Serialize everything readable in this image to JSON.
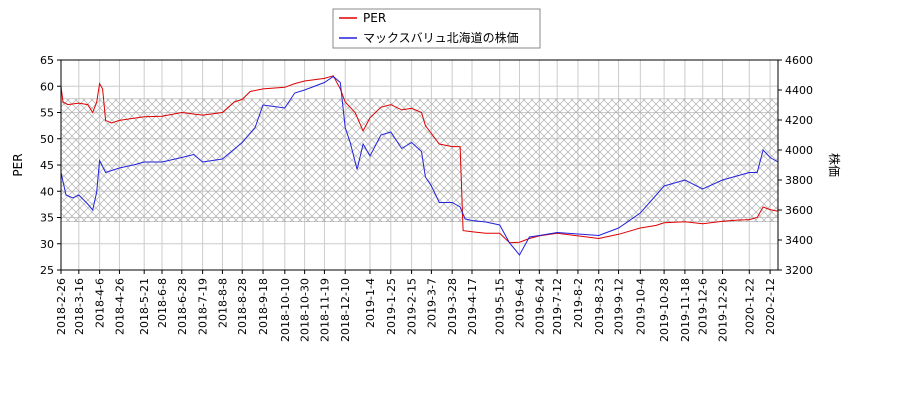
{
  "chart_data": {
    "type": "line",
    "legend": {
      "placement": "top-center",
      "entries": [
        "PER",
        "マックスバリュ北海道の株価"
      ]
    },
    "left_axis": {
      "label": "PER",
      "ylim": [
        25,
        65
      ],
      "ticks": [
        25,
        30,
        35,
        40,
        45,
        50,
        55,
        60,
        65
      ]
    },
    "right_axis": {
      "label": "株価",
      "ylim": [
        3200,
        4600
      ],
      "ticks": [
        3200,
        3400,
        3600,
        3800,
        4000,
        4200,
        4400,
        4600
      ]
    },
    "x_ticks": [
      "2018-2-26",
      "2018-3-16",
      "2018-4-6",
      "2018-4-26",
      "2018-5-21",
      "2018-6-8",
      "2018-6-28",
      "2018-7-19",
      "2018-8-8",
      "2018-8-28",
      "2018-9-18",
      "2018-10-10",
      "2018-10-30",
      "2018-11-19",
      "2018-12-10",
      "2019-1-4",
      "2019-1-25",
      "2019-2-15",
      "2019-3-7",
      "2019-3-28",
      "2019-4-17",
      "2019-5-15",
      "2019-6-4",
      "2019-6-24",
      "2019-7-12",
      "2019-8-2",
      "2019-8-23",
      "2019-9-12",
      "2019-10-4",
      "2019-10-28",
      "2019-11-18",
      "2019-12-6",
      "2019-12-26",
      "2020-1-22",
      "2020-2-12"
    ],
    "grid": true,
    "band": {
      "axis": "left",
      "from": 34.2,
      "to": 57.6
    },
    "colors": {
      "PER": "#dd0000",
      "price": "#2222dd",
      "grid": "#cccccc",
      "band_hatch": "#b0b0b0"
    },
    "series": [
      {
        "name": "PER",
        "axis": "left",
        "color": "#dd0000",
        "points": [
          [
            "2018-2-26",
            60
          ],
          [
            "2018-2-28",
            57
          ],
          [
            "2018-3-5",
            56.5
          ],
          [
            "2018-3-16",
            56.8
          ],
          [
            "2018-3-25",
            56.5
          ],
          [
            "2018-3-30",
            55
          ],
          [
            "2018-4-3",
            57
          ],
          [
            "2018-4-6",
            60.5
          ],
          [
            "2018-4-9",
            59.5
          ],
          [
            "2018-4-12",
            53.5
          ],
          [
            "2018-4-18",
            53
          ],
          [
            "2018-4-26",
            53.5
          ],
          [
            "2018-5-21",
            54.2
          ],
          [
            "2018-6-8",
            54.3
          ],
          [
            "2018-6-28",
            55
          ],
          [
            "2018-7-19",
            54.5
          ],
          [
            "2018-8-8",
            55
          ],
          [
            "2018-8-20",
            57
          ],
          [
            "2018-8-28",
            57.5
          ],
          [
            "2018-9-5",
            59
          ],
          [
            "2018-9-18",
            59.5
          ],
          [
            "2018-10-10",
            59.8
          ],
          [
            "2018-10-20",
            60.5
          ],
          [
            "2018-10-30",
            61
          ],
          [
            "2018-11-19",
            61.5
          ],
          [
            "2018-11-28",
            62
          ],
          [
            "2018-12-5",
            59.5
          ],
          [
            "2018-12-10",
            57
          ],
          [
            "2018-12-20",
            55
          ],
          [
            "2018-12-28",
            51.5
          ],
          [
            "2019-1-4",
            54
          ],
          [
            "2019-1-15",
            56
          ],
          [
            "2019-1-25",
            56.5
          ],
          [
            "2019-2-5",
            55.5
          ],
          [
            "2019-2-15",
            55.8
          ],
          [
            "2019-2-25",
            55
          ],
          [
            "2019-3-1",
            52.5
          ],
          [
            "2019-3-7",
            51
          ],
          [
            "2019-3-15",
            49
          ],
          [
            "2019-3-28",
            48.5
          ],
          [
            "2019-4-5",
            48.5
          ],
          [
            "2019-4-8",
            32.5
          ],
          [
            "2019-4-17",
            32.3
          ],
          [
            "2019-5-1",
            32
          ],
          [
            "2019-5-15",
            32
          ],
          [
            "2019-5-25",
            30.2
          ],
          [
            "2019-6-4",
            30.3
          ],
          [
            "2019-6-14",
            31
          ],
          [
            "2019-6-24",
            31.5
          ],
          [
            "2019-7-12",
            32
          ],
          [
            "2019-8-2",
            31.5
          ],
          [
            "2019-8-23",
            31
          ],
          [
            "2019-9-12",
            31.8
          ],
          [
            "2019-10-4",
            33
          ],
          [
            "2019-10-20",
            33.5
          ],
          [
            "2019-10-28",
            34
          ],
          [
            "2019-11-18",
            34.2
          ],
          [
            "2019-12-6",
            33.8
          ],
          [
            "2019-12-26",
            34.3
          ],
          [
            "2020-1-10",
            34.5
          ],
          [
            "2020-1-22",
            34.6
          ],
          [
            "2020-1-30",
            35
          ],
          [
            "2020-2-5",
            37
          ],
          [
            "2020-2-12",
            36.5
          ],
          [
            "2020-2-20",
            36.2
          ]
        ]
      },
      {
        "name": "マックスバリュ北海道の株価",
        "axis": "right",
        "color": "#2222dd",
        "points": [
          [
            "2018-2-26",
            3850
          ],
          [
            "2018-3-3",
            3700
          ],
          [
            "2018-3-10",
            3680
          ],
          [
            "2018-3-16",
            3700
          ],
          [
            "2018-3-25",
            3640
          ],
          [
            "2018-3-30",
            3600
          ],
          [
            "2018-4-3",
            3720
          ],
          [
            "2018-4-6",
            3930
          ],
          [
            "2018-4-12",
            3850
          ],
          [
            "2018-4-26",
            3880
          ],
          [
            "2018-5-10",
            3900
          ],
          [
            "2018-5-21",
            3920
          ],
          [
            "2018-6-8",
            3920
          ],
          [
            "2018-6-28",
            3950
          ],
          [
            "2018-7-10",
            3970
          ],
          [
            "2018-7-19",
            3920
          ],
          [
            "2018-8-8",
            3940
          ],
          [
            "2018-8-28",
            4050
          ],
          [
            "2018-9-10",
            4150
          ],
          [
            "2018-9-18",
            4300
          ],
          [
            "2018-10-10",
            4280
          ],
          [
            "2018-10-20",
            4380
          ],
          [
            "2018-10-30",
            4400
          ],
          [
            "2018-11-19",
            4450
          ],
          [
            "2018-11-28",
            4490
          ],
          [
            "2018-12-5",
            4450
          ],
          [
            "2018-12-10",
            4150
          ],
          [
            "2018-12-15",
            4050
          ],
          [
            "2018-12-22",
            3870
          ],
          [
            "2018-12-28",
            4040
          ],
          [
            "2019-1-4",
            3960
          ],
          [
            "2019-1-15",
            4100
          ],
          [
            "2019-1-25",
            4120
          ],
          [
            "2019-2-5",
            4010
          ],
          [
            "2019-2-15",
            4050
          ],
          [
            "2019-2-25",
            3990
          ],
          [
            "2019-3-1",
            3820
          ],
          [
            "2019-3-7",
            3760
          ],
          [
            "2019-3-15",
            3650
          ],
          [
            "2019-3-28",
            3650
          ],
          [
            "2019-4-5",
            3620
          ],
          [
            "2019-4-10",
            3540
          ],
          [
            "2019-4-17",
            3530
          ],
          [
            "2019-5-1",
            3520
          ],
          [
            "2019-5-15",
            3500
          ],
          [
            "2019-5-25",
            3380
          ],
          [
            "2019-6-4",
            3300
          ],
          [
            "2019-6-14",
            3420
          ],
          [
            "2019-6-24",
            3430
          ],
          [
            "2019-7-12",
            3450
          ],
          [
            "2019-8-2",
            3440
          ],
          [
            "2019-8-23",
            3430
          ],
          [
            "2019-9-12",
            3480
          ],
          [
            "2019-10-4",
            3580
          ],
          [
            "2019-10-20",
            3700
          ],
          [
            "2019-10-28",
            3760
          ],
          [
            "2019-11-18",
            3800
          ],
          [
            "2019-12-6",
            3740
          ],
          [
            "2019-12-26",
            3800
          ],
          [
            "2020-1-22",
            3850
          ],
          [
            "2020-1-30",
            3850
          ],
          [
            "2020-2-5",
            4000
          ],
          [
            "2020-2-12",
            3950
          ],
          [
            "2020-2-20",
            3920
          ]
        ]
      }
    ]
  }
}
